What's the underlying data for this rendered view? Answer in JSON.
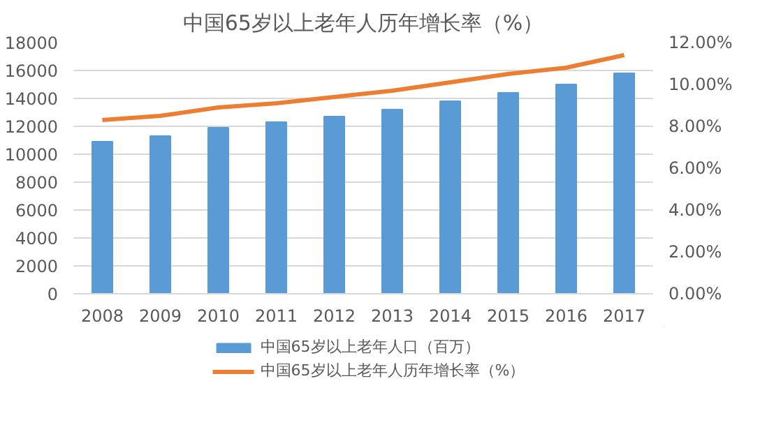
{
  "chart_data": {
    "type": "bar",
    "title": "中国65岁以上老年人历年增长率（%）",
    "categories": [
      "2008",
      "2009",
      "2010",
      "2011",
      "2012",
      "2013",
      "2014",
      "2015",
      "2016",
      "2017"
    ],
    "series": [
      {
        "name": "中国65岁以上老年人口（百万）",
        "color": "#5b9bd5",
        "values": [
          10900,
          11300,
          11900,
          12300,
          12700,
          13200,
          13800,
          14400,
          15000,
          15800
        ]
      },
      {
        "name": "中国65岁以上老年人历年增长率（%）",
        "type": "line",
        "axis": "y2",
        "color": "#ed7d31",
        "values": [
          8.3,
          8.5,
          8.9,
          9.1,
          9.4,
          9.7,
          10.1,
          10.5,
          10.8,
          11.4
        ]
      }
    ],
    "ylim": [
      0,
      18000
    ],
    "yticks": [
      0,
      2000,
      4000,
      6000,
      8000,
      10000,
      12000,
      14000,
      16000,
      18000
    ],
    "y2lim": [
      0,
      12
    ],
    "y2ticks": [
      {
        "value": 0,
        "label": "0.00%"
      },
      {
        "value": 2,
        "label": "2.00%"
      },
      {
        "value": 4,
        "label": "4.00%"
      },
      {
        "value": 6,
        "label": "6.00%"
      },
      {
        "value": 8,
        "label": "8.00%"
      },
      {
        "value": 10,
        "label": "10.00%"
      },
      {
        "value": 12,
        "label": "12.00%"
      }
    ],
    "grid": "y",
    "legend": "bottom",
    "marker": "none",
    "line_style": "solid"
  }
}
